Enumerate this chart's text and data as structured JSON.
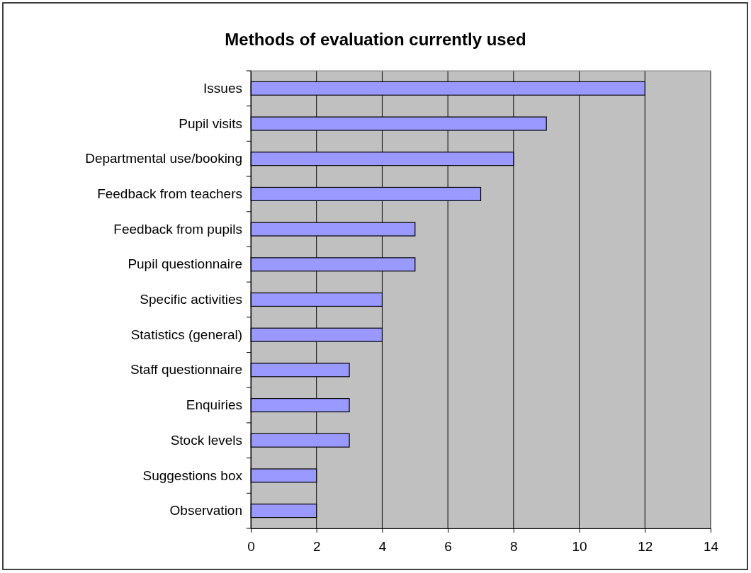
{
  "chart_data": {
    "type": "bar",
    "orientation": "horizontal",
    "title": "Methods of evaluation currently used",
    "categories": [
      "Issues",
      "Pupil visits",
      "Departmental use/booking",
      "Feedback from teachers",
      "Feedback from pupils",
      "Pupil questionnaire",
      "Specific activities",
      "Statistics (general)",
      "Staff questionnaire",
      "Enquiries",
      "Stock levels",
      "Suggestions box",
      "Observation"
    ],
    "values": [
      12,
      9,
      8,
      7,
      5,
      5,
      4,
      4,
      3,
      3,
      3,
      2,
      2
    ],
    "color": "#9999ff",
    "xlim": [
      0,
      14
    ],
    "xticks": [
      0,
      2,
      4,
      6,
      8,
      10,
      12,
      14
    ],
    "grid": "x"
  }
}
